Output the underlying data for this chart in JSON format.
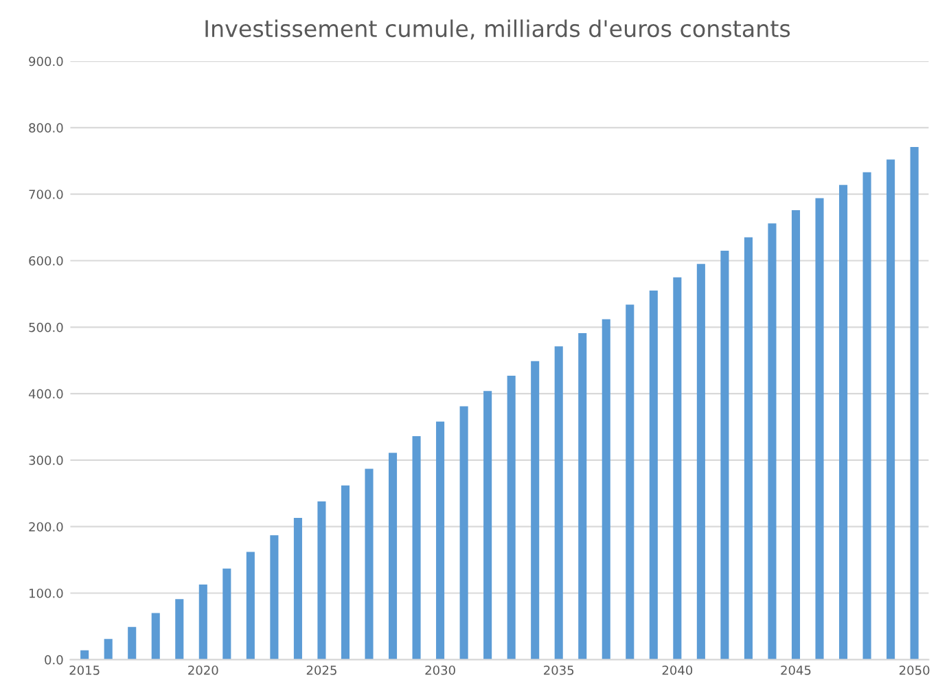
{
  "chart_data": {
    "type": "bar",
    "title": "Investissement cumule, milliards d'euros constants",
    "categories": [
      "2015",
      null,
      null,
      null,
      null,
      "2020",
      null,
      null,
      null,
      null,
      "2025",
      null,
      null,
      null,
      null,
      "2030",
      null,
      null,
      null,
      null,
      "2035",
      null,
      null,
      null,
      null,
      "2040",
      null,
      null,
      null,
      null,
      "2045",
      null,
      null,
      null,
      null,
      "2050"
    ],
    "values": [
      14,
      31,
      49,
      70,
      91,
      113,
      137,
      162,
      187,
      213,
      238,
      262,
      287,
      311,
      336,
      358,
      381,
      404,
      427,
      449,
      471,
      491,
      512,
      534,
      555,
      575,
      595,
      615,
      635,
      656,
      676,
      694,
      714,
      733,
      752,
      771
    ],
    "color": "#5b9bd5",
    "ylim": [
      0,
      900
    ],
    "yticks": [
      {
        "value": 0,
        "label": "0.0"
      },
      {
        "value": 100,
        "label": "100.0"
      },
      {
        "value": 200,
        "label": "200.0"
      },
      {
        "value": 300,
        "label": "300.0"
      },
      {
        "value": 400,
        "label": "400.0"
      },
      {
        "value": 500,
        "label": "500.0"
      },
      {
        "value": 600,
        "label": "600.0"
      },
      {
        "value": 700,
        "label": "700.0"
      },
      {
        "value": 800,
        "label": "800.0"
      },
      {
        "value": 900,
        "label": "900.0"
      }
    ],
    "grid": "y",
    "legend": false
  }
}
